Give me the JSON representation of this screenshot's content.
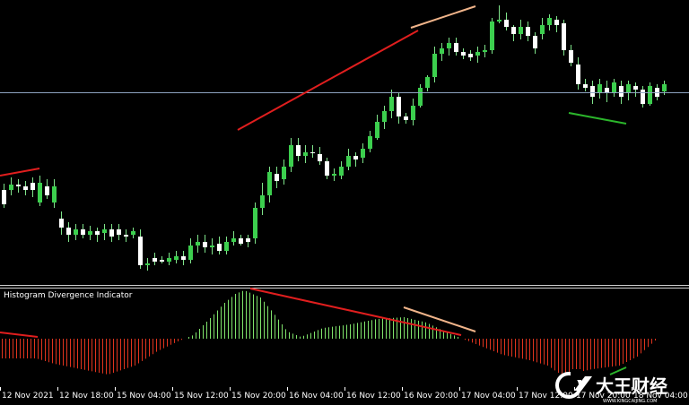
{
  "colors": {
    "background": "#000000",
    "candle_up": "#3ccf4e",
    "candle_down": "#ffffff",
    "wick": "#7fe38a",
    "trend_red": "#e01e1e",
    "trend_peach": "#f0b48a",
    "trend_green": "#2bb52b",
    "price_line": "#8ea3c0",
    "hist_pos": "#7fe36b",
    "hist_neg": "#e0341e",
    "separator": "#cfcfcf"
  },
  "indicator": {
    "title": "Histogram Divergence Indicator"
  },
  "time_axis": {
    "labels": [
      "12 Nov 2021",
      "12 Nov 18:00",
      "15 Nov 04:00",
      "15 Nov 12:00",
      "15 Nov 20:00",
      "16 Nov 04:00",
      "16 Nov 12:00",
      "16 Nov 20:00",
      "17 Nov 04:00",
      "17 Nov 12:00",
      "17 Nov 20:00",
      "18 Nov 04:00"
    ]
  },
  "watermark": {
    "text": "大王财经",
    "url": "WWW.KINGCAIJING.COM"
  },
  "price_chart": {
    "candles": [
      [
        212,
        228,
        205,
        232
      ],
      [
        212,
        206,
        198,
        218
      ],
      [
        206,
        208,
        200,
        215
      ],
      [
        208,
        212,
        202,
        218
      ],
      [
        204,
        212,
        198,
        220
      ],
      [
        226,
        204,
        196,
        230
      ],
      [
        208,
        218,
        200,
        222
      ],
      [
        226,
        208,
        200,
        232
      ],
      [
        244,
        254,
        236,
        262
      ],
      [
        254,
        262,
        248,
        270
      ],
      [
        262,
        256,
        250,
        268
      ],
      [
        256,
        262,
        250,
        266
      ],
      [
        262,
        258,
        252,
        268
      ],
      [
        258,
        262,
        254,
        270
      ],
      [
        260,
        256,
        250,
        268
      ],
      [
        256,
        264,
        250,
        270
      ],
      [
        256,
        262,
        250,
        268
      ],
      [
        262,
        264,
        256,
        270
      ],
      [
        262,
        258,
        254,
        266
      ],
      [
        264,
        296,
        256,
        300
      ],
      [
        296,
        294,
        288,
        302
      ],
      [
        288,
        292,
        282,
        296
      ],
      [
        290,
        292,
        286,
        294
      ],
      [
        292,
        288,
        282,
        296
      ],
      [
        290,
        286,
        280,
        294
      ],
      [
        286,
        290,
        280,
        296
      ],
      [
        290,
        274,
        266,
        294
      ],
      [
        274,
        270,
        262,
        282
      ],
      [
        270,
        276,
        262,
        282
      ],
      [
        276,
        274,
        266,
        284
      ],
      [
        272,
        280,
        264,
        284
      ],
      [
        280,
        270,
        264,
        284
      ],
      [
        270,
        266,
        258,
        274
      ],
      [
        266,
        272,
        262,
        274
      ],
      [
        266,
        270,
        262,
        276
      ],
      [
        266,
        232,
        226,
        272
      ],
      [
        232,
        218,
        204,
        240
      ],
      [
        218,
        192,
        186,
        226
      ],
      [
        194,
        202,
        186,
        210
      ],
      [
        200,
        186,
        178,
        206
      ],
      [
        186,
        162,
        154,
        192
      ],
      [
        162,
        174,
        154,
        180
      ],
      [
        174,
        170,
        162,
        182
      ],
      [
        170,
        170,
        162,
        176
      ],
      [
        172,
        180,
        164,
        184
      ],
      [
        180,
        196,
        176,
        200
      ],
      [
        196,
        194,
        188,
        202
      ],
      [
        196,
        186,
        180,
        200
      ],
      [
        186,
        174,
        166,
        190
      ],
      [
        174,
        178,
        170,
        186
      ],
      [
        176,
        166,
        160,
        182
      ],
      [
        166,
        152,
        146,
        170
      ],
      [
        154,
        136,
        128,
        156
      ],
      [
        136,
        124,
        118,
        144
      ],
      [
        124,
        108,
        100,
        132
      ],
      [
        108,
        130,
        104,
        138
      ],
      [
        130,
        134,
        126,
        138
      ],
      [
        134,
        118,
        110,
        140
      ],
      [
        118,
        98,
        94,
        120
      ],
      [
        98,
        86,
        84,
        102
      ],
      [
        86,
        60,
        52,
        92
      ],
      [
        60,
        54,
        48,
        68
      ],
      [
        54,
        48,
        42,
        62
      ],
      [
        48,
        58,
        42,
        62
      ],
      [
        58,
        62,
        54,
        66
      ],
      [
        60,
        64,
        56,
        68
      ],
      [
        62,
        58,
        52,
        70
      ],
      [
        58,
        56,
        50,
        64
      ],
      [
        56,
        24,
        20,
        60
      ],
      [
        24,
        22,
        6,
        26
      ],
      [
        22,
        30,
        14,
        34
      ],
      [
        30,
        38,
        28,
        46
      ],
      [
        38,
        30,
        22,
        44
      ],
      [
        30,
        40,
        24,
        46
      ],
      [
        40,
        54,
        36,
        60
      ],
      [
        38,
        28,
        20,
        44
      ],
      [
        28,
        20,
        16,
        34
      ],
      [
        22,
        28,
        18,
        36
      ],
      [
        26,
        56,
        22,
        62
      ],
      [
        56,
        70,
        50,
        74
      ],
      [
        72,
        94,
        64,
        100
      ],
      [
        94,
        98,
        88,
        102
      ],
      [
        96,
        108,
        90,
        116
      ],
      [
        104,
        94,
        88,
        110
      ],
      [
        98,
        104,
        90,
        114
      ],
      [
        104,
        92,
        88,
        108
      ],
      [
        96,
        108,
        90,
        116
      ],
      [
        104,
        94,
        90,
        112
      ],
      [
        96,
        100,
        92,
        108
      ],
      [
        100,
        116,
        96,
        120
      ],
      [
        116,
        96,
        92,
        118
      ],
      [
        98,
        108,
        94,
        112
      ],
      [
        102,
        94,
        90,
        106
      ]
    ]
  }
}
